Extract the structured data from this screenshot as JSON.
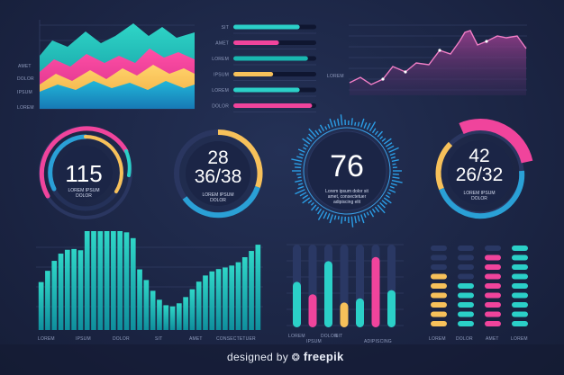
{
  "area_chart": {
    "labels": [
      "AMET",
      "DOLOR",
      "IPSUM",
      "LOREM"
    ]
  },
  "progress_list": {
    "items": [
      {
        "label": "SIT",
        "value": 0.8,
        "color": "#2bd0c8"
      },
      {
        "label": "AMET",
        "value": 0.55,
        "color": "#f0449c"
      },
      {
        "label": "LOREM",
        "value": 0.9,
        "color": "#19b7b0"
      },
      {
        "label": "IPSUM",
        "value": 0.48,
        "color": "#f7c15a"
      },
      {
        "label": "LOREM",
        "value": 0.8,
        "color": "#2bd0c8"
      },
      {
        "label": "DOLOR",
        "value": 0.95,
        "color": "#f0449c"
      }
    ]
  },
  "line_chart": {
    "label": "LOREM"
  },
  "gauges": [
    {
      "lines": [
        "115"
      ],
      "caption": [
        "LOREM IPSUM",
        "DOLOR"
      ]
    },
    {
      "lines": [
        "28",
        "36/38"
      ],
      "caption": [
        "LOREM IPSUM",
        "DOLOR"
      ]
    },
    {
      "lines": [
        "76"
      ],
      "caption": [
        "Lorem ipsum dolor sit",
        "amet, consectetuer",
        "adipiscing elit"
      ]
    },
    {
      "lines": [
        "42",
        "26/32"
      ],
      "caption": [
        "LOREM IPSUM",
        "DOLOR"
      ]
    }
  ],
  "bar_wave": {
    "labels": [
      "LOREM",
      "IPSUM",
      "DOLOR",
      "SIT",
      "AMET",
      "CONSECTETUER"
    ]
  },
  "capsule_bars": {
    "labels_top": [
      "LOREM",
      "SIT",
      "ADIPISCING"
    ],
    "labels_bottom": [
      "IPSUM",
      "DOLOR"
    ],
    "values": [
      0.55,
      0.4,
      0.8,
      0.3,
      0.35,
      0.85,
      0.45
    ]
  },
  "segment_bars": {
    "labels": [
      "LOREM",
      "DOLOR",
      "AMET",
      "LOREM"
    ]
  },
  "watermark": {
    "prefix": "designed by",
    "brand": "freepik"
  }
}
